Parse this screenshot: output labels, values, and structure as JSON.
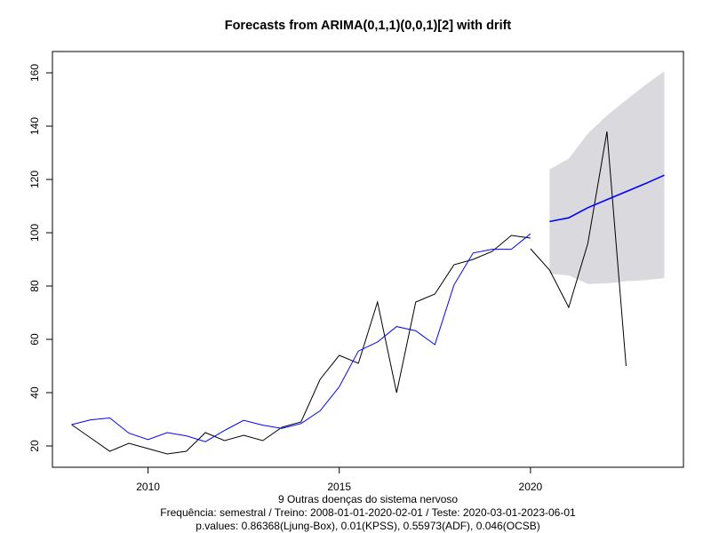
{
  "chart_data": {
    "type": "line",
    "title": "Forecasts from ARIMA(0,1,1)(0,0,1)[2] with drift",
    "subtitles": [
      "9 Outras doenças do sistema nervoso",
      "Frequência: semestral / Treino: 2008-01-01-2020-02-01 / Teste: 2020-03-01-2023-06-01",
      "p.values: 0.86368(Ljung-Box), 0.01(KPSS), 0.55973(ADF), 0.046(OCSB)"
    ],
    "xlim": [
      2007.5,
      2024.0
    ],
    "ylim": [
      12,
      168
    ],
    "x_ticks": [
      2010,
      2015,
      2020
    ],
    "y_ticks": [
      20,
      40,
      60,
      80,
      100,
      120,
      140,
      160
    ],
    "grid": false,
    "series": [
      {
        "color": "#000000",
        "x": [
          2008.0,
          2008.5,
          2009.0,
          2009.5,
          2010.0,
          2010.5,
          2011.0,
          2011.5,
          2012.0,
          2012.5,
          2013.0,
          2013.5,
          2014.0,
          2014.5,
          2015.0,
          2015.5,
          2016.0,
          2016.5,
          2017.0,
          2017.5,
          2018.0,
          2018.5,
          2019.0,
          2019.5,
          2020.0
        ],
        "values": [
          28,
          23,
          18,
          21,
          19,
          17,
          18,
          25,
          22,
          24,
          22,
          27,
          29,
          45,
          54,
          51,
          74,
          40,
          74,
          77,
          88,
          90,
          93,
          99,
          98
        ]
      },
      {
        "color": "#0000ff",
        "x": [
          2008.0,
          2008.5,
          2009.0,
          2009.5,
          2010.0,
          2010.5,
          2011.0,
          2011.5,
          2012.0,
          2012.5,
          2013.0,
          2013.5,
          2014.0,
          2014.5,
          2015.0,
          2015.5,
          2016.0,
          2016.5,
          2017.0,
          2017.5,
          2018.0,
          2018.5,
          2019.0,
          2019.5,
          2020.0
        ],
        "values": [
          28,
          29.8,
          30.5,
          24.8,
          22.4,
          25,
          23.8,
          21.6,
          25.8,
          29.6,
          27.8,
          26.6,
          28.4,
          33.2,
          42.2,
          55.6,
          59,
          64.8,
          63.2,
          58,
          80.4,
          92.4,
          93.8,
          93.8,
          99.6
        ]
      },
      {
        "color": "#000000",
        "x": [
          2020.0,
          2020.5,
          2021.0,
          2021.5,
          2022.0,
          2022.5
        ],
        "values": [
          94,
          86,
          72,
          96,
          138,
          50
        ]
      },
      {
        "color": "#0000ff",
        "x": [
          2020.5,
          2021.0,
          2021.5,
          2022.0,
          2022.5,
          2023.0,
          2023.5
        ],
        "values": [
          104.2,
          105.6,
          109.4,
          112.4,
          115.4,
          118.4,
          121.6
        ]
      }
    ],
    "interval": {
      "color": "#d9d9de",
      "x": [
        2020.5,
        2021.0,
        2021.5,
        2022.0,
        2022.5,
        2023.0,
        2023.5
      ],
      "upper": [
        123.8,
        127.8,
        137.2,
        144,
        149.8,
        155.4,
        160.6
      ],
      "lower": [
        84.6,
        84,
        80.8,
        81,
        81.8,
        82.2,
        83
      ]
    }
  }
}
